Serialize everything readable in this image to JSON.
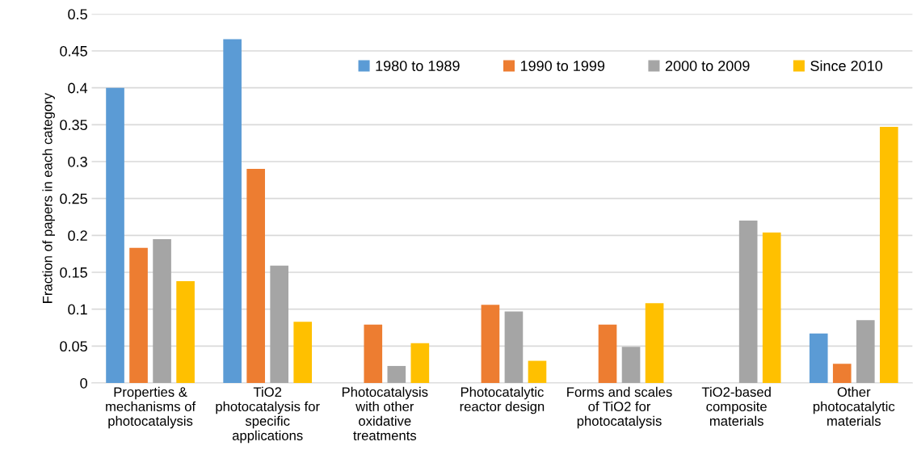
{
  "chart_data": {
    "type": "bar",
    "ylabel": "Fraction of papers in each category",
    "categories": [
      "Properties &\nmechanisms of\nphotocatalysis",
      "TiO2\nphotocatalysis for\nspecific\napplications",
      "Photocatalysis\nwith other\noxidative\ntreatments",
      "Photocatalytic\nreactor design",
      "Forms and scales\nof TiO2 for\nphotocatalysis",
      "TiO2-based\ncomposite\nmaterials",
      "Other\nphotocatalytic\nmaterials"
    ],
    "series": [
      {
        "name": "1980 to 1989",
        "color": "#5b9bd5",
        "values": [
          0.4,
          0.466,
          null,
          null,
          null,
          null,
          0.067
        ]
      },
      {
        "name": "1990 to 1999",
        "color": "#ed7d31",
        "values": [
          0.183,
          0.29,
          0.079,
          0.106,
          0.079,
          null,
          0.026
        ]
      },
      {
        "name": "2000 to 2009",
        "color": "#a5a5a5",
        "values": [
          0.195,
          0.159,
          0.023,
          0.097,
          0.049,
          0.22,
          0.085
        ]
      },
      {
        "name": "Since 2010",
        "color": "#ffc000",
        "values": [
          0.138,
          0.083,
          0.054,
          0.03,
          0.108,
          0.204,
          0.347
        ]
      }
    ],
    "ylim": [
      0,
      0.5
    ],
    "yticks": [
      0,
      0.05,
      0.1,
      0.15,
      0.2,
      0.25,
      0.3,
      0.35,
      0.4,
      0.45,
      0.5
    ],
    "grid": "y",
    "legend": "top right"
  }
}
